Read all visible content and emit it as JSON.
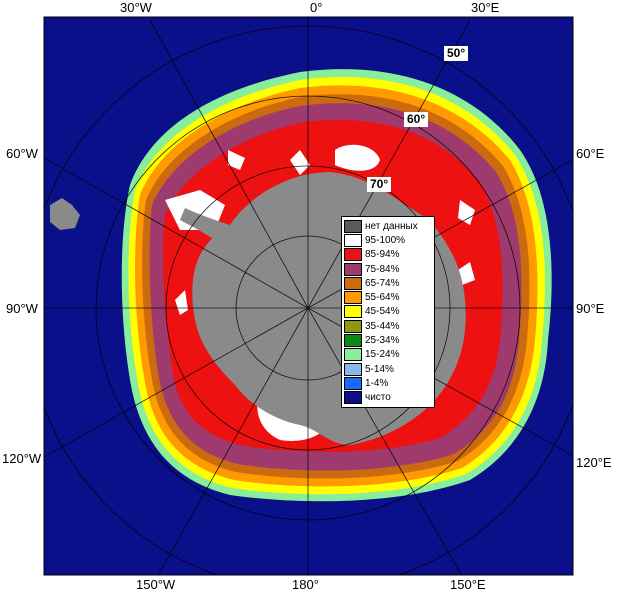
{
  "map": {
    "lon_labels_top": [
      "30°W",
      "0°",
      "30°E"
    ],
    "lon_labels_bottom": [
      "150°W",
      "180°",
      "150°E"
    ],
    "lon_labels_left": [
      "60°W",
      "90°W",
      "120°W"
    ],
    "lon_labels_right": [
      "60°E",
      "90°E",
      "120°E"
    ],
    "lat_labels": [
      "50°",
      "60°",
      "70°"
    ]
  },
  "legend": {
    "items": [
      {
        "label": "нет данных",
        "color": "#5a5a5a"
      },
      {
        "label": "95-100%",
        "color": "#ffffff"
      },
      {
        "label": "85-94%",
        "color": "#ee1111"
      },
      {
        "label": "75-84%",
        "color": "#9e3a6e"
      },
      {
        "label": "65-74%",
        "color": "#cc6a10"
      },
      {
        "label": "55-64%",
        "color": "#ff9a00"
      },
      {
        "label": "45-54%",
        "color": "#ffff00"
      },
      {
        "label": "35-44%",
        "color": "#8a9a10"
      },
      {
        "label": "25-34%",
        "color": "#0a8a10"
      },
      {
        "label": "15-24%",
        "color": "#88ee99"
      },
      {
        "label": "5-14%",
        "color": "#8ab8ee"
      },
      {
        "label": "1-4%",
        "color": "#1a6aff"
      },
      {
        "label": "чисто",
        "color": "#0a108a"
      }
    ]
  }
}
